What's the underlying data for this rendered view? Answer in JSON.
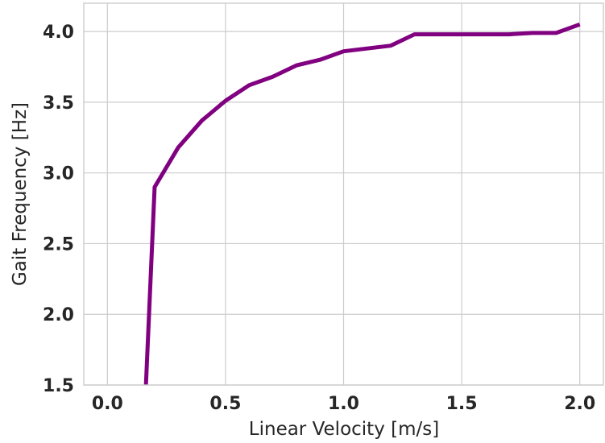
{
  "chart_data": {
    "type": "line",
    "title": "",
    "xlabel": "Linear Velocity [m/s]",
    "ylabel": "Gait Frequency [Hz]",
    "xlim": [
      -0.1,
      2.1
    ],
    "ylim": [
      1.5,
      4.2
    ],
    "xticks": [
      0.0,
      0.5,
      1.0,
      1.5,
      2.0
    ],
    "xtick_labels": [
      "0.0",
      "0.5",
      "1.0",
      "1.5",
      "2.0"
    ],
    "yticks": [
      1.5,
      2.0,
      2.5,
      3.0,
      3.5,
      4.0
    ],
    "ytick_labels": [
      "1.5",
      "2.0",
      "2.5",
      "3.0",
      "3.5",
      "4.0"
    ],
    "grid": true,
    "series": [
      {
        "color": "#800080",
        "x": [
          0.15,
          0.2,
          0.3,
          0.4,
          0.5,
          0.6,
          0.7,
          0.8,
          0.9,
          1.0,
          1.1,
          1.2,
          1.3,
          1.4,
          1.5,
          1.6,
          1.7,
          1.8,
          1.9,
          2.0
        ],
        "y": [
          1.0,
          2.9,
          3.18,
          3.37,
          3.51,
          3.62,
          3.68,
          3.76,
          3.8,
          3.86,
          3.88,
          3.9,
          3.98,
          3.98,
          3.98,
          3.98,
          3.98,
          3.99,
          3.99,
          4.05
        ]
      }
    ]
  }
}
